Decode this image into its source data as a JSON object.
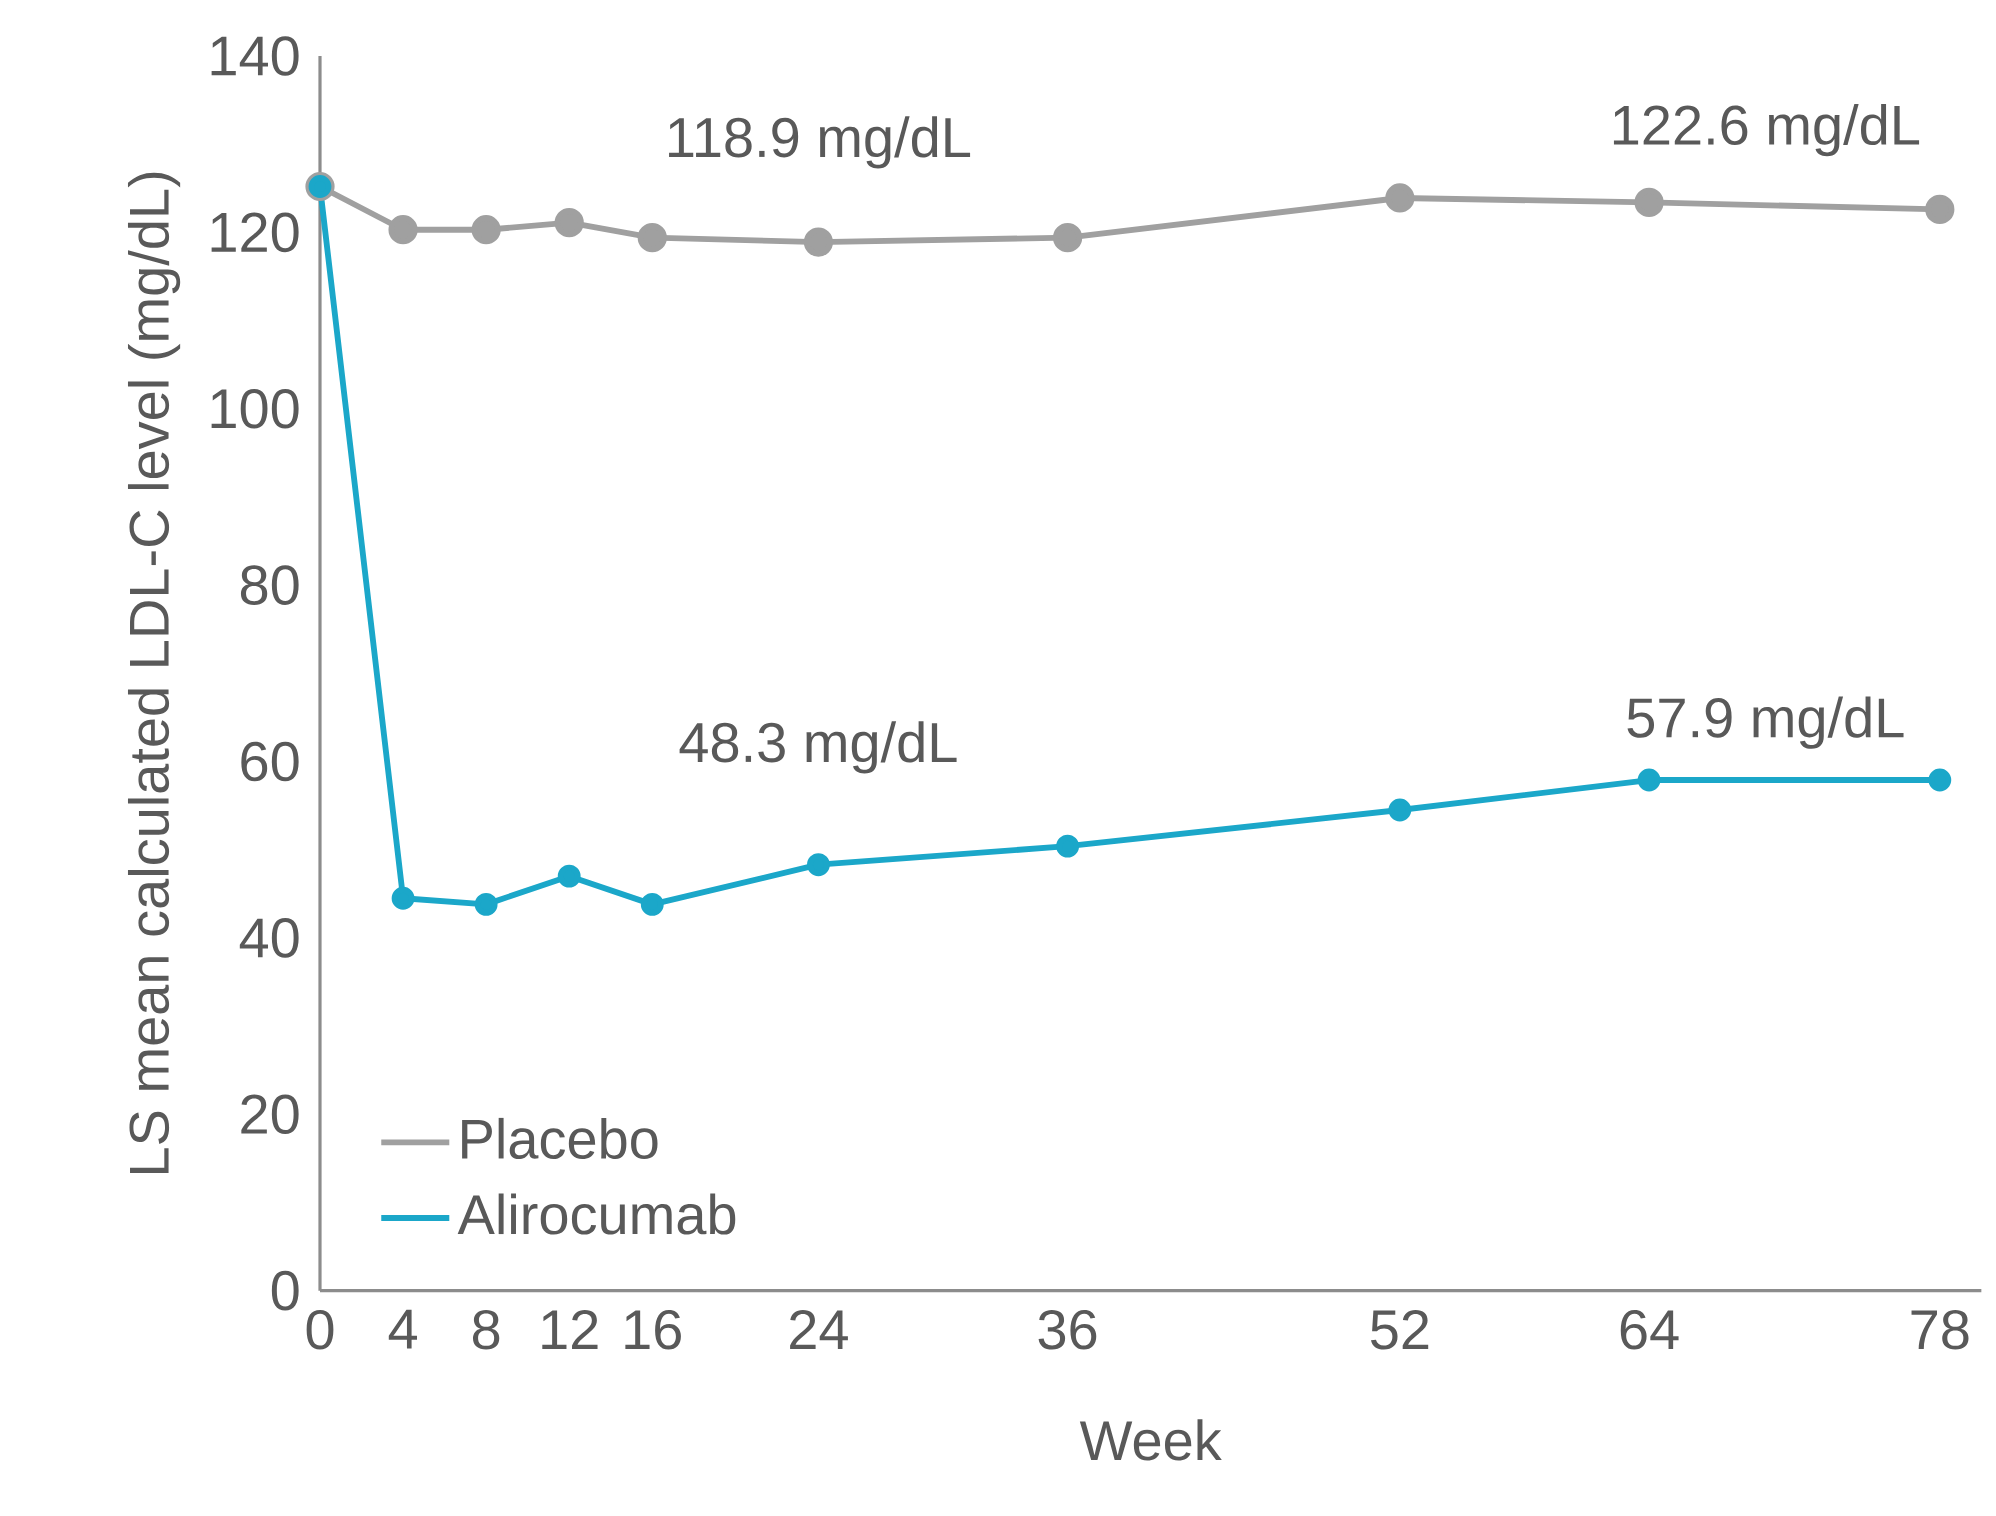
{
  "chart_data": {
    "type": "line",
    "xlabel": "Week",
    "ylabel": "LS mean calculated LDL-C level (mg/dL)",
    "x": [
      0,
      4,
      8,
      12,
      16,
      24,
      36,
      52,
      64,
      78
    ],
    "series": [
      {
        "name": "Placebo",
        "color": "#a0a0a0",
        "values": [
          125.2,
          120.3,
          120.3,
          121.1,
          119.4,
          118.9,
          119.4,
          123.9,
          123.4,
          122.6
        ]
      },
      {
        "name": "Alirocumab",
        "color": "#1ba7c9",
        "values": [
          125.2,
          44.5,
          43.8,
          47.0,
          43.8,
          48.3,
          50.4,
          54.5,
          57.9,
          57.9
        ]
      }
    ],
    "annotations": [
      "118.9 mg/dL",
      "122.6 mg/dL",
      "48.3 mg/dL",
      "57.9 mg/dL"
    ],
    "xlim": [
      0,
      80
    ],
    "xticks": [
      0,
      4,
      8,
      12,
      16,
      24,
      36,
      52,
      64,
      78
    ],
    "ylim": [
      0,
      140
    ],
    "yticks": [
      0,
      20,
      40,
      60,
      80,
      100,
      120,
      140
    ],
    "grid": false,
    "legend": "bottom left",
    "marker": "circle",
    "line_style": "solid"
  }
}
